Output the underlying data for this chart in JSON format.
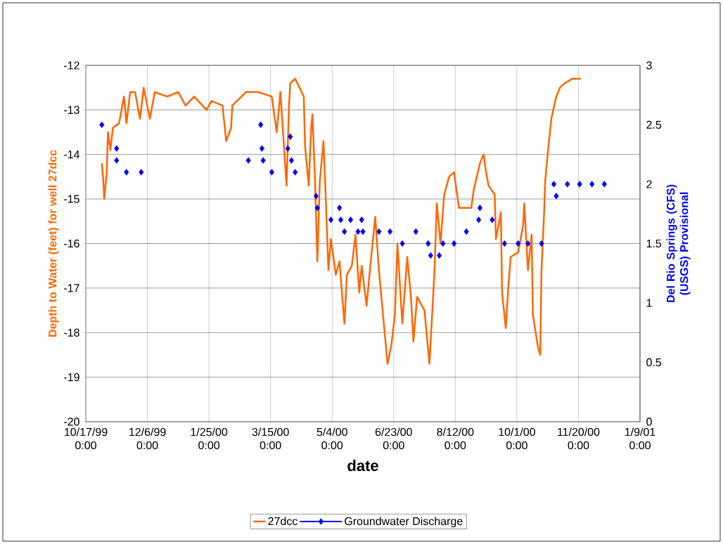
{
  "chart_data": {
    "type": "line",
    "xlabel": "date",
    "ylabel": "Depth to Water (feet)  for well 27dcc",
    "y2label": "Del Rio Springs (CFS) (USGS) Provisional",
    "xlim": [
      "1999-10-17",
      "2001-01-09"
    ],
    "xticks": [
      {
        "value": "1999-10-17",
        "label": "10/17/99 0:00"
      },
      {
        "value": "1999-12-06",
        "label": "12/6/99 0:00"
      },
      {
        "value": "2000-01-25",
        "label": "1/25/00 0:00"
      },
      {
        "value": "2000-03-15",
        "label": "3/15/00 0:00"
      },
      {
        "value": "2000-05-04",
        "label": "5/4/00 0:00"
      },
      {
        "value": "2000-06-23",
        "label": "6/23/00 0:00"
      },
      {
        "value": "2000-08-12",
        "label": "8/12/00 0:00"
      },
      {
        "value": "2000-10-01",
        "label": "10/1/00 0:00"
      },
      {
        "value": "2000-11-20",
        "label": "11/20/00 0:00"
      },
      {
        "value": "2001-01-09",
        "label": "1/9/01 0:00"
      }
    ],
    "ylim": [
      -20,
      -12
    ],
    "yticks": [
      -20,
      -19,
      -18,
      -17,
      -16,
      -15,
      -14,
      -13,
      -12
    ],
    "y2lim": [
      0,
      3
    ],
    "y2ticks": [
      0,
      0.5,
      1,
      1.5,
      2,
      2.5,
      3
    ],
    "grid": true,
    "legend": "bottom",
    "series": [
      {
        "name": "27dcc",
        "type": "line",
        "color": "#ff6600",
        "axis": "y",
        "marker": "none",
        "line_style": "solid",
        "x": [
          "1999-10-30",
          "1999-10-31",
          "1999-11-01",
          "1999-11-03",
          "1999-11-04",
          "1999-11-06",
          "1999-11-08",
          "1999-11-13",
          "1999-11-15",
          "1999-11-17",
          "1999-11-19",
          "1999-11-22",
          "1999-11-26",
          "1999-11-30",
          "1999-12-03",
          "1999-12-08",
          "1999-12-12",
          "1999-12-22",
          "1999-12-31",
          "2000-01-06",
          "2000-01-13",
          "2000-01-23",
          "2000-01-27",
          "2000-02-05",
          "2000-02-08",
          "2000-02-12",
          "2000-02-13",
          "2000-02-24",
          "2000-03-05",
          "2000-03-16",
          "2000-03-20",
          "2000-03-23",
          "2000-03-28",
          "2000-03-30",
          "2000-03-31",
          "2000-04-04",
          "2000-04-11",
          "2000-04-12",
          "2000-04-15",
          "2000-04-17",
          "2000-04-18",
          "2000-04-20",
          "2000-04-22",
          "2000-04-24",
          "2000-04-27",
          "2000-04-29",
          "2000-05-01",
          "2000-05-03",
          "2000-05-07",
          "2000-05-10",
          "2000-05-14",
          "2000-05-16",
          "2000-05-20",
          "2000-05-23",
          "2000-05-26",
          "2000-05-28",
          "2000-06-01",
          "2000-06-04",
          "2000-06-08",
          "2000-06-11",
          "2000-06-14",
          "2000-06-18",
          "2000-06-21",
          "2000-06-24",
          "2000-06-26",
          "2000-06-30",
          "2000-07-04",
          "2000-07-07",
          "2000-07-09",
          "2000-07-12",
          "2000-07-18",
          "2000-07-22",
          "2000-07-26",
          "2000-07-28",
          "2000-07-31",
          "2000-08-03",
          "2000-08-07",
          "2000-08-11",
          "2000-08-15",
          "2000-08-25",
          "2000-08-27",
          "2000-09-01",
          "2000-09-04",
          "2000-09-06",
          "2000-09-08",
          "2000-09-13",
          "2000-09-14",
          "2000-09-18",
          "2000-09-19",
          "2000-09-22",
          "2000-09-24",
          "2000-09-26",
          "2000-10-02",
          "2000-10-06",
          "2000-10-07",
          "2000-10-10",
          "2000-10-13",
          "2000-10-14",
          "2000-10-18",
          "2000-10-20",
          "2000-10-21",
          "2000-10-23",
          "2000-10-24",
          "2000-10-26",
          "2000-10-29",
          "2000-11-02",
          "2000-11-05",
          "2000-11-09",
          "2000-11-15",
          "2000-11-22"
        ],
        "values": [
          -14.2,
          -14.5,
          -15.0,
          -14.4,
          -13.5,
          -13.9,
          -13.4,
          -13.3,
          -13.0,
          -12.7,
          -13.3,
          -12.6,
          -12.6,
          -13.2,
          -12.5,
          -13.2,
          -12.6,
          -12.7,
          -12.6,
          -12.9,
          -12.7,
          -13.0,
          -12.8,
          -12.9,
          -13.7,
          -13.4,
          -12.9,
          -12.6,
          -12.6,
          -12.7,
          -13.5,
          -12.6,
          -14.7,
          -12.9,
          -12.4,
          -12.3,
          -12.7,
          -13.8,
          -14.7,
          -13.4,
          -13.1,
          -14.5,
          -16.4,
          -14.6,
          -13.7,
          -15.1,
          -16.6,
          -15.9,
          -16.7,
          -16.4,
          -17.8,
          -16.7,
          -16.5,
          -15.8,
          -17.1,
          -16.5,
          -17.4,
          -16.5,
          -15.4,
          -16.6,
          -17.5,
          -18.7,
          -18.3,
          -17.6,
          -16.0,
          -17.8,
          -16.3,
          -17.2,
          -18.2,
          -17.2,
          -17.5,
          -18.7,
          -16.7,
          -15.1,
          -16.0,
          -14.9,
          -14.5,
          -14.4,
          -15.2,
          -15.2,
          -14.8,
          -14.2,
          -14.0,
          -14.4,
          -14.7,
          -14.9,
          -15.9,
          -15.3,
          -17.1,
          -17.9,
          -17.0,
          -16.3,
          -16.2,
          -15.6,
          -15.1,
          -16.6,
          -15.8,
          -17.6,
          -18.3,
          -18.5,
          -16.6,
          -15.4,
          -14.6,
          -14.0,
          -13.2,
          -12.7,
          -12.5,
          -12.4,
          -12.3,
          -12.3
        ]
      },
      {
        "name": "Groundwater Discharge",
        "type": "scatter",
        "color": "#0000ff",
        "axis": "y2",
        "marker": "diamond",
        "x": [
          "1999-10-30",
          "1999-11-11",
          "1999-11-11",
          "1999-11-19",
          "1999-12-01",
          "2000-02-26",
          "2000-03-07",
          "2000-03-08",
          "2000-03-09",
          "2000-03-16",
          "2000-03-29",
          "2000-03-31",
          "2000-04-01",
          "2000-04-04",
          "2000-04-21",
          "2000-04-22",
          "2000-05-03",
          "2000-05-10",
          "2000-05-11",
          "2000-05-14",
          "2000-05-19",
          "2000-05-25",
          "2000-05-28",
          "2000-05-29",
          "2000-06-11",
          "2000-06-20",
          "2000-06-30",
          "2000-07-11",
          "2000-07-21",
          "2000-07-23",
          "2000-07-30",
          "2000-08-02",
          "2000-08-11",
          "2000-08-21",
          "2000-08-31",
          "2000-09-01",
          "2000-09-11",
          "2000-09-21",
          "2000-10-02",
          "2000-10-10",
          "2000-10-21",
          "2000-10-31",
          "2000-11-02",
          "2000-11-11",
          "2000-11-21",
          "2000-12-01",
          "2000-12-11"
        ],
        "values": [
          2.5,
          2.3,
          2.2,
          2.1,
          2.1,
          2.2,
          2.5,
          2.3,
          2.2,
          2.1,
          2.3,
          2.4,
          2.2,
          2.1,
          1.9,
          1.8,
          1.7,
          1.8,
          1.7,
          1.6,
          1.7,
          1.6,
          1.7,
          1.6,
          1.6,
          1.6,
          1.5,
          1.6,
          1.5,
          1.4,
          1.4,
          1.5,
          1.5,
          1.6,
          1.7,
          1.8,
          1.7,
          1.5,
          1.5,
          1.5,
          1.5,
          2.0,
          1.9,
          2.0,
          2.0,
          2.0,
          2.0
        ]
      }
    ]
  }
}
